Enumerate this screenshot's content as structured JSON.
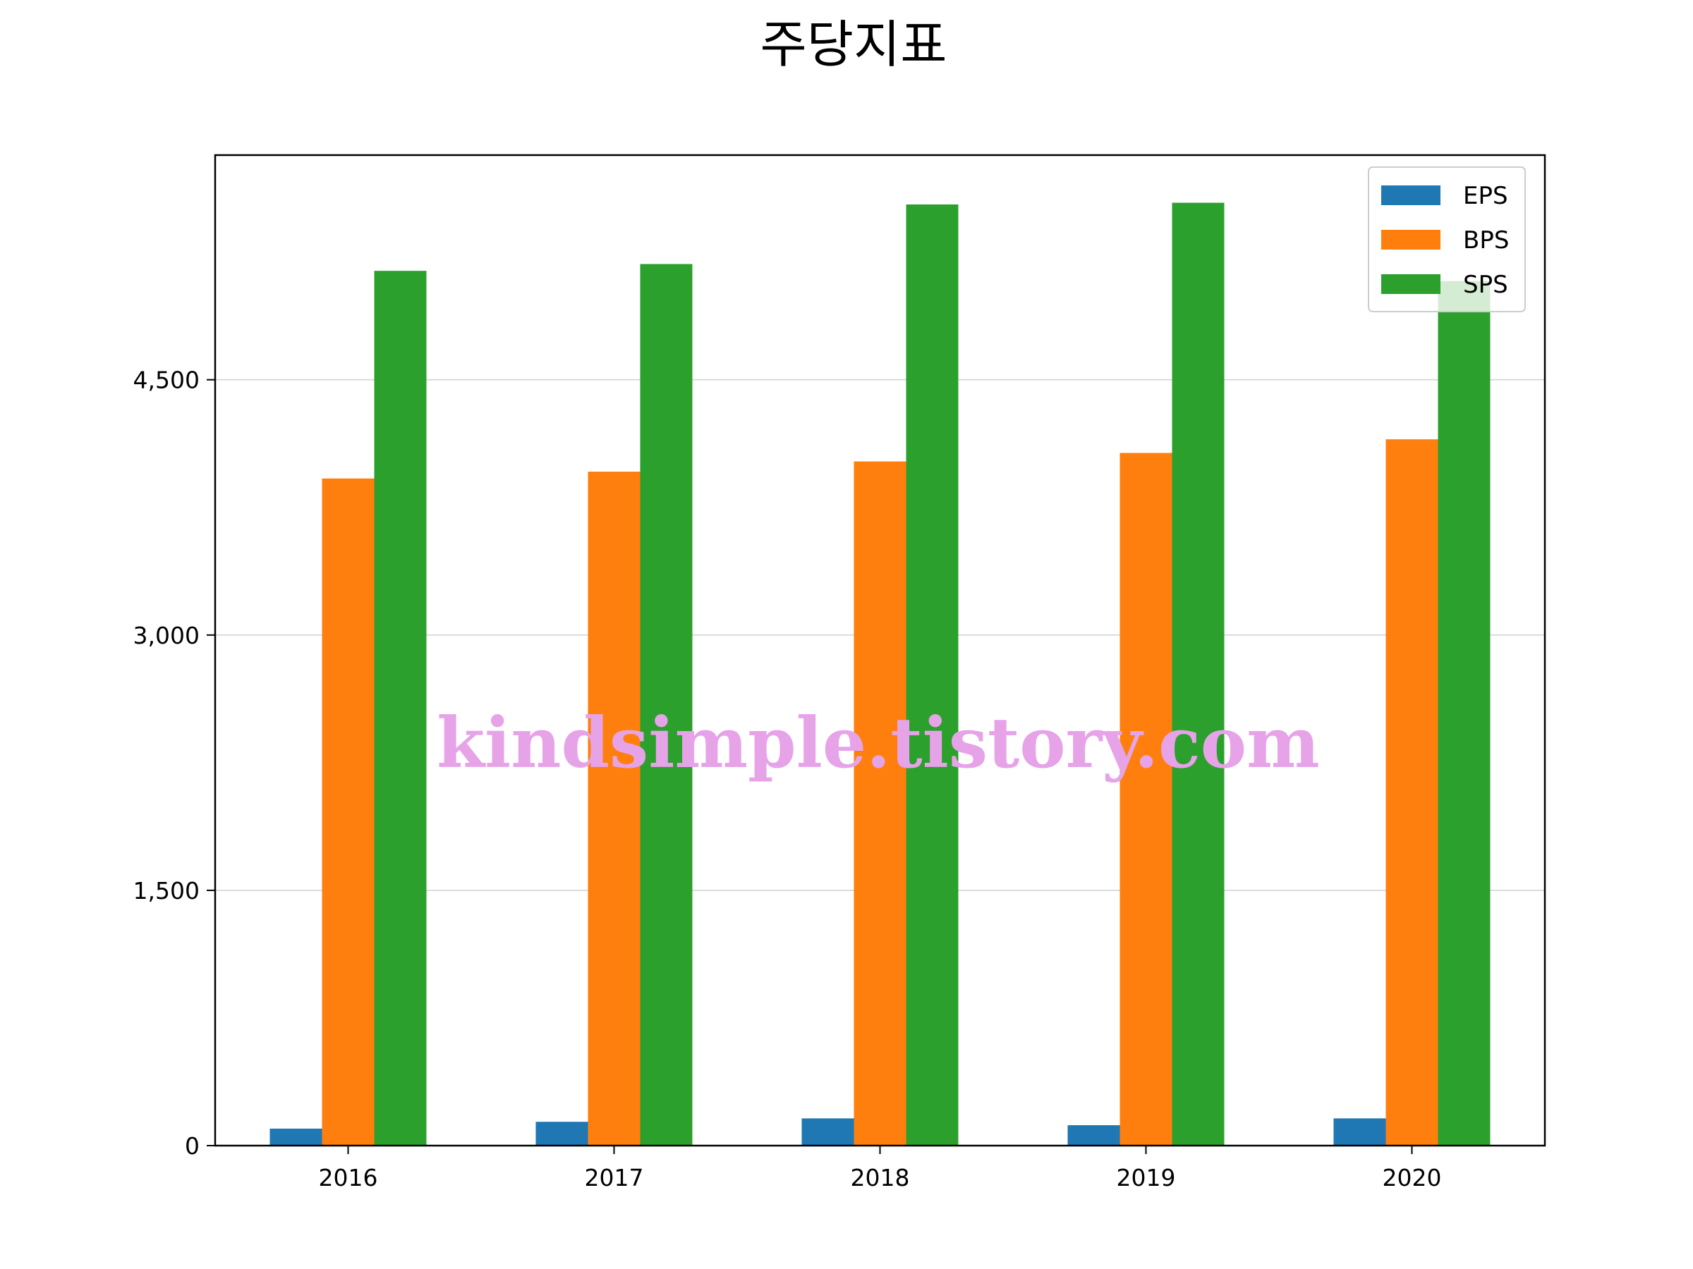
{
  "chart_data": {
    "type": "bar",
    "title": "주당지표",
    "xlabel": "",
    "ylabel": "",
    "categories": [
      "2016",
      "2017",
      "2018",
      "2019",
      "2020"
    ],
    "series": [
      {
        "name": "EPS",
        "color": "#1f77b4",
        "values": [
          100,
          140,
          160,
          120,
          160
        ]
      },
      {
        "name": "BPS",
        "color": "#ff7f0e",
        "values": [
          3920,
          3960,
          4020,
          4070,
          4150
        ]
      },
      {
        "name": "SPS",
        "color": "#2ca02c",
        "values": [
          5140,
          5180,
          5530,
          5540,
          5080
        ]
      }
    ],
    "yticks": [
      0,
      1500,
      3000,
      4500
    ],
    "ytick_labels": [
      "0",
      "1,500",
      "3,000",
      "4,500"
    ],
    "ylim": [
      0,
      5820
    ],
    "grid": "y",
    "legend": "top-right"
  },
  "watermark": "kindsimple.tistory.com"
}
